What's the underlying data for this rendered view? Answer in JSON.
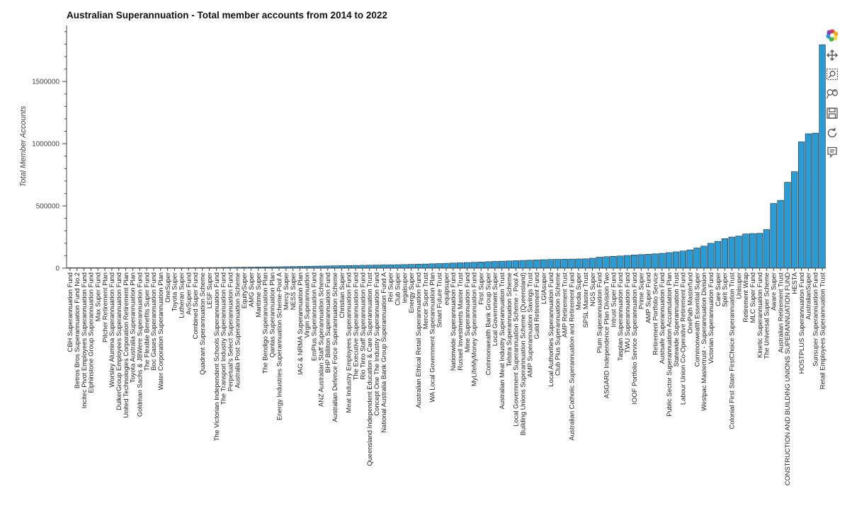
{
  "chart_data": {
    "type": "bar",
    "title": "Australian Superannuation - Total member accounts from 2014 to 2022",
    "ylabel": "Total Member Accounts",
    "xlabel": "",
    "ylim": [
      0,
      1950000
    ],
    "yticks": [
      0,
      500000,
      1000000,
      1500000
    ],
    "ytick_labels": [
      "0",
      "500000",
      "1000000",
      "1500000"
    ],
    "grid": false,
    "colors": {
      "bar": "#2b9bd3",
      "bar_edge": "#1f2b36"
    },
    "categories": [
      "CBH Superannuation Fund",
      "Betros Bros Superannuation Fund No.2",
      "Incitec Pivot Employees Superannuation Fund",
      "Elphinstone Group Superannuation Fund",
      "Max Super Fund",
      "Pitcher Retirement Plan",
      "Worsley Alumina Superannuation Fund",
      "DulkerGroup Employees Superannuation Fund",
      "United Technologies Corporation Retirement Plan",
      "Toyota Australia Superannuation Plan",
      "Goldman Sachs & JBWere Superannuation Fund",
      "The Flexible Benefits Super Fund",
      "Boc Gases Superannuation Fund",
      "Water Corporation Superannuation Plan",
      "OneSuper",
      "Toyota Super",
      "Lutheran Super",
      "AvSuper Fund",
      "Combined Super Fund",
      "Quadrant Superannuation Scheme",
      "LESF Super",
      "The Victorian Independent Schools Superannuation Fund",
      "The Transport Industry Superannuation Fund",
      "Perpetual's Select Superannuation Fund",
      "Australia Post Superannuation Scheme",
      "EquitySuper",
      "AMG Super",
      "Maritime Super",
      "The Bendigo Superannuation Plan",
      "Qantas Superannuation Plan",
      "Energy Industries Superannuation Scheme-Pool A",
      "Mercy Super",
      "NESS Super",
      "IAG & NRMA Superannuation Plan",
      "Virgin Superannuation",
      "EmPlus Superannuation Fund",
      "ANZ Australian Staff Superannuation Scheme",
      "BHP Billiton Superannuation Fund",
      "Australian Defence Force Superannuation Scheme",
      "Christian Super",
      "Meat Industry Employees Superannuation Fund",
      "The Executive Superannuation Fund",
      "Rio Tinto Staff Superannuation Fund",
      "Queensland Independent Education & Care Superannuation Trust",
      "Concept One The Industry Superannuation Fund",
      "National Australia Bank Group Superannuation Fund A",
      "Rei Super",
      "Club Super",
      "legalsuper",
      "Energy Super",
      "Australian Ethical Retail Superannuation Fund",
      "Mercer Super Trust",
      "WA Local Government Superannuation Plan",
      "Smart Future Trust",
      "equipsuper",
      "Nationwide Superannuation Fund",
      "Russell Investments Master Trust",
      "Mine Superannuation Fund",
      "MyLifeMyMoney Superannuation Fund",
      "First Super",
      "Commonwealth Bank Group Super",
      "Local Government Super",
      "Australian Meat Industry Superannuation Trust",
      "Telstra Superannuation Scheme",
      "Local Government Superannuation Scheme - Pool A",
      "Building Unions Superannuation Scheme (Queensland)",
      "AMP Superannuation Savings Trust",
      "Guild Retirement Fund",
      "LGIAsuper",
      "Local Authorities Superannuation Fund",
      "Club Plus Superannuation Scheme",
      "AMP Retirement Trust",
      "Australian Catholic Superannuation and Retirement Fund",
      "Media Super",
      "SPSL Master Trust",
      "NGS Super",
      "Plum Superannuation Fund",
      "ASGARD Independence Plan Division Two",
      "Intrust Super Fund",
      "Tasplan Superannuation Fund",
      "TWU Superannuation Fund",
      "IOOF Portfolio Service Superannuation Fund",
      "Prime Super",
      "AMP Super Fund",
      "Retirement Portfolio Service",
      "Austsafe Superannuation Fund",
      "Public Sector Superannuation Accumulation Plan",
      "Statewide Superannuation Trust",
      "Labour Union Co-Operative Retirement Fund",
      "OnePath Masterfund",
      "Commonwealth Essential Super",
      "Westpac Mastertrust - Superannuation Division",
      "Victorian Superannuation Fund",
      "Care Super",
      "Spirit Super",
      "Colonial First State FirstChoice Superannuation Trust",
      "Unisuper",
      "Retirement Wrap",
      "MLC Super Fund",
      "Kinetic Superannuation Fund",
      "The Universal Super Scheme",
      "Aware Super",
      "Australian Retirement Trust",
      "CONSTRUCTION AND BUILDING UNIONS SUPERANNUATION FUND",
      "HESTA",
      "HOSTPLUS Superannuation Fund",
      "AustralianSuper",
      "Sunsuper Superannuation Fund",
      "Retail Employees Superannuation Trust"
    ],
    "values": [
      30,
      120,
      200,
      280,
      300,
      500,
      700,
      900,
      1000,
      1100,
      1300,
      1500,
      1800,
      2000,
      2400,
      2800,
      3100,
      3400,
      3800,
      4200,
      4700,
      5200,
      5700,
      6300,
      6900,
      7500,
      8200,
      8900,
      9700,
      10500,
      11300,
      12200,
      13100,
      14000,
      15000,
      16000,
      17000,
      18000,
      19000,
      20000,
      21000,
      22000,
      23000,
      24000,
      25000,
      26000,
      27000,
      28000,
      29000,
      30500,
      32000,
      33500,
      35000,
      37000,
      39000,
      41000,
      43000,
      45000,
      47000,
      49000,
      52000,
      54000,
      56000,
      58000,
      60000,
      62000,
      64000,
      66000,
      68000,
      70000,
      71000,
      72000,
      73000,
      74000,
      75000,
      80000,
      88000,
      92000,
      95000,
      98000,
      102000,
      106000,
      109000,
      112000,
      115000,
      119000,
      125000,
      131000,
      138000,
      147000,
      162000,
      177000,
      200000,
      215000,
      237000,
      250000,
      258000,
      275000,
      278000,
      280000,
      310000,
      520000,
      545000,
      690000,
      775000,
      1015000,
      1080000,
      1085000,
      1795000
    ]
  },
  "toolbar": {
    "tools": [
      {
        "name": "bokeh-logo-icon"
      },
      {
        "name": "pan-icon"
      },
      {
        "name": "box-zoom-icon"
      },
      {
        "name": "wheel-zoom-icon"
      },
      {
        "name": "save-icon"
      },
      {
        "name": "reset-icon"
      },
      {
        "name": "hover-icon"
      }
    ]
  }
}
